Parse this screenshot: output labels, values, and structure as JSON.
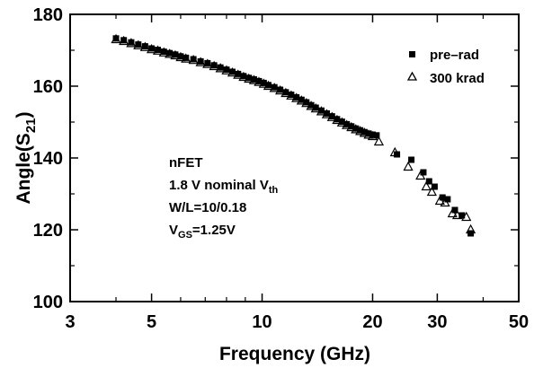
{
  "chart_data": {
    "type": "scatter",
    "xlabel": "Frequency (GHz)",
    "ylabel": "Angle(S21)",
    "ylabel_parts": {
      "main": "Angle(S",
      "sub": "21",
      "close": ")"
    },
    "x_scale": "log",
    "xlim": [
      3,
      50
    ],
    "ylim": [
      100,
      180
    ],
    "x_ticks": [
      3,
      5,
      10,
      20,
      30,
      50
    ],
    "x_tick_labels": [
      "3",
      "5",
      "10",
      "20",
      "30",
      "50"
    ],
    "y_ticks": [
      100,
      120,
      140,
      160,
      180
    ],
    "y_tick_labels": [
      "100",
      "120",
      "140",
      "160",
      "180"
    ],
    "grid": false,
    "legend_position": "top-right",
    "annotation": {
      "line1": "nFET",
      "line2_main": "1.8 V nominal V",
      "line2_sub": "th",
      "line3": "W/L=10/0.18",
      "line4_main": "V",
      "line4_sub": "GS",
      "line4_rest": "=1.25V"
    },
    "series": [
      {
        "name": "pre–rad",
        "marker": "filled-square",
        "x": [
          4.0,
          4.2,
          4.4,
          4.6,
          4.8,
          5.0,
          5.2,
          5.4,
          5.6,
          5.8,
          6.0,
          6.2,
          6.5,
          6.8,
          7.1,
          7.4,
          7.7,
          8.0,
          8.3,
          8.6,
          8.9,
          9.2,
          9.5,
          9.8,
          10.1,
          10.4,
          10.8,
          11.2,
          11.6,
          12.0,
          12.4,
          12.8,
          13.2,
          13.6,
          14.0,
          14.5,
          15.0,
          15.5,
          16.0,
          16.5,
          17.0,
          17.5,
          18.0,
          18.5,
          19.0,
          19.5,
          20.0,
          20.5,
          23.3,
          25.5,
          27.5,
          28.5,
          29.5,
          31.0,
          32.0,
          33.5,
          35.0,
          37.0
        ],
        "y": [
          173.3,
          172.8,
          172.2,
          171.6,
          171.1,
          170.5,
          170.1,
          169.6,
          169.2,
          168.8,
          168.3,
          167.9,
          167.5,
          166.9,
          166.4,
          165.8,
          165.2,
          164.6,
          164.0,
          163.4,
          162.8,
          162.3,
          161.9,
          161.4,
          160.9,
          160.3,
          159.7,
          159.0,
          158.3,
          157.6,
          156.9,
          156.2,
          155.5,
          154.7,
          154.0,
          153.2,
          152.4,
          151.6,
          150.8,
          150.1,
          149.4,
          148.8,
          148.2,
          147.7,
          147.2,
          146.8,
          146.5,
          146.3,
          141.0,
          139.5,
          136.0,
          133.5,
          132.0,
          129.0,
          128.5,
          125.5,
          124.0,
          119.0
        ]
      },
      {
        "name": "300 krad",
        "marker": "open-triangle",
        "x": [
          4.0,
          4.2,
          4.4,
          4.6,
          4.8,
          5.0,
          5.2,
          5.4,
          5.6,
          5.8,
          6.0,
          6.2,
          6.5,
          6.8,
          7.1,
          7.4,
          7.7,
          8.0,
          8.3,
          8.6,
          8.9,
          9.2,
          9.5,
          9.8,
          10.1,
          10.4,
          10.8,
          11.2,
          11.6,
          12.0,
          12.4,
          12.8,
          13.2,
          13.6,
          14.0,
          14.5,
          15.0,
          15.5,
          16.0,
          16.5,
          17.0,
          17.5,
          18.0,
          18.5,
          19.0,
          19.5,
          20.0,
          20.8,
          23.0,
          25.0,
          27.0,
          28.0,
          29.0,
          30.5,
          31.5,
          33.0,
          34.0,
          36.0,
          37.0
        ],
        "y": [
          173.0,
          172.5,
          171.9,
          171.3,
          170.8,
          170.2,
          169.8,
          169.3,
          168.9,
          168.5,
          168.0,
          167.6,
          167.2,
          166.6,
          166.1,
          165.5,
          164.9,
          164.3,
          163.7,
          163.1,
          162.5,
          162.0,
          161.6,
          161.1,
          160.6,
          160.0,
          159.4,
          158.7,
          158.0,
          157.3,
          156.6,
          155.9,
          155.2,
          154.4,
          153.7,
          152.9,
          152.1,
          151.3,
          150.5,
          149.8,
          149.1,
          148.5,
          147.9,
          147.4,
          146.9,
          146.4,
          146.0,
          144.5,
          141.5,
          137.5,
          135.0,
          132.0,
          130.5,
          128.0,
          127.5,
          124.5,
          124.0,
          123.5,
          120.0
        ]
      }
    ]
  }
}
